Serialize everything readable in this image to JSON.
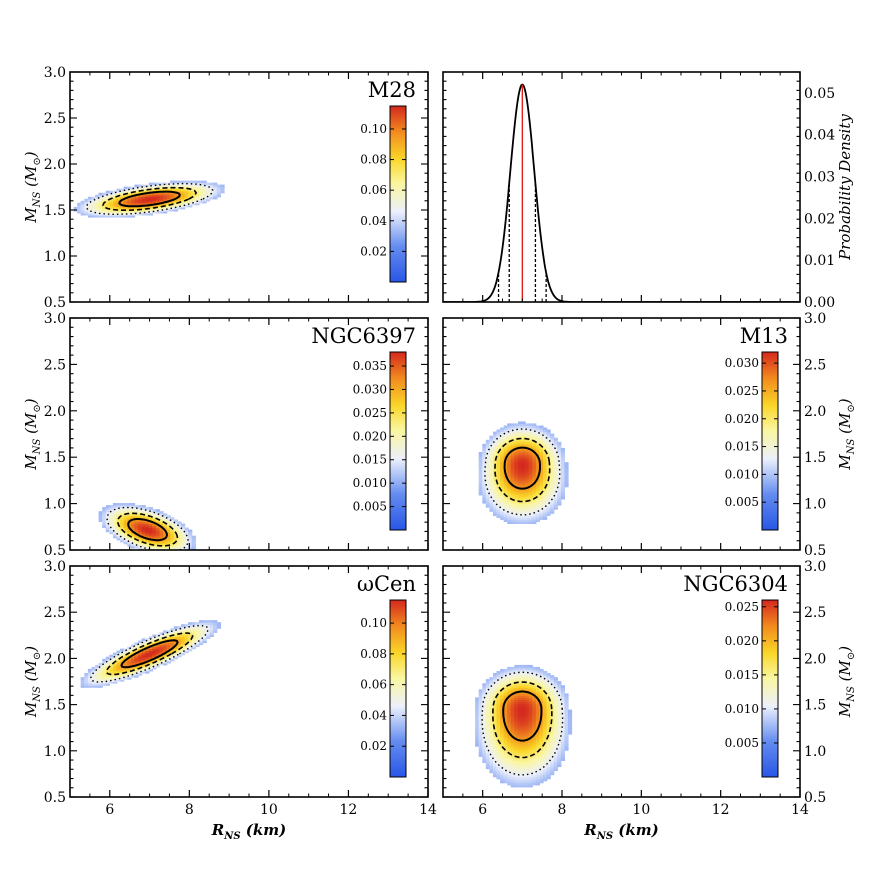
{
  "figure": {
    "x_axis_label": {
      "main": "R",
      "sub": "NS",
      "unit": " (km)"
    },
    "mass_axis_label": {
      "main": "M",
      "sub": "NS",
      "unit_open": " (M",
      "unit_sub": "⊙",
      "unit_close": ")"
    },
    "density_axis_label": "Probability Density"
  },
  "chart_data": [
    {
      "type": "heatmap",
      "panel": "M28",
      "title": "M28",
      "xlim": [
        5,
        14
      ],
      "ylim": [
        0.5,
        3.0
      ],
      "xticks": [
        6,
        8,
        10,
        12,
        14
      ],
      "yticks": [
        0.5,
        1.0,
        1.5,
        2.0,
        2.5,
        3.0
      ],
      "ytick_labels": [
        "0.5",
        "1.0",
        "1.5",
        "2.0",
        "2.5",
        "3.0"
      ],
      "peak": {
        "R": 7.0,
        "M": 1.62
      },
      "colorbar": {
        "min": 0,
        "max": 0.115,
        "ticks": [
          "0.02",
          "0.04",
          "0.06",
          "0.08",
          "0.10"
        ],
        "tick_values": [
          0.02,
          0.04,
          0.06,
          0.08,
          0.1
        ]
      }
    },
    {
      "type": "line",
      "panel": "radius-pdf",
      "title": "",
      "xlim": [
        5,
        14
      ],
      "ylim": [
        0.0,
        0.055
      ],
      "xticks": [
        6,
        8,
        10,
        12,
        14
      ],
      "yticks": [
        0.0,
        0.01,
        0.02,
        0.03,
        0.04,
        0.05
      ],
      "ytick_labels": [
        "0.00",
        "0.01",
        "0.02",
        "0.03",
        "0.04",
        "0.05"
      ],
      "ylabel": "Probability Density",
      "gaussian": {
        "mean": 7.0,
        "sigma": 0.3,
        "peak": 0.052
      },
      "median_line": 7.0,
      "dashed_lines": [
        6.4,
        6.67,
        7.33,
        7.6
      ]
    },
    {
      "type": "heatmap",
      "panel": "NGC6397",
      "title": "NGC6397",
      "xlim": [
        5,
        14
      ],
      "ylim": [
        0.5,
        3.0
      ],
      "xticks": [
        6,
        8,
        10,
        12,
        14
      ],
      "yticks": [
        0.5,
        1.0,
        1.5,
        2.0,
        2.5,
        3.0
      ],
      "ytick_labels": [
        "0.5",
        "1.0",
        "1.5",
        "2.0",
        "2.5",
        "3.0"
      ],
      "peak": {
        "R": 7.0,
        "M": 0.65
      },
      "colorbar": {
        "min": 0,
        "max": 0.038,
        "ticks": [
          "0.005",
          "0.010",
          "0.015",
          "0.020",
          "0.025",
          "0.030",
          "0.035"
        ],
        "tick_values": [
          0.005,
          0.01,
          0.015,
          0.02,
          0.025,
          0.03,
          0.035
        ]
      }
    },
    {
      "type": "heatmap",
      "panel": "M13",
      "title": "M13",
      "xlim": [
        5,
        14
      ],
      "ylim": [
        0.5,
        3.0
      ],
      "xticks": [
        6,
        8,
        10,
        12,
        14
      ],
      "yticks": [
        0.5,
        1.0,
        1.5,
        2.0,
        2.5,
        3.0
      ],
      "ytick_labels": [
        "0.5",
        "1.0",
        "1.5",
        "2.0",
        "2.5",
        "3.0"
      ],
      "peak": {
        "R": 7.0,
        "M": 1.45
      },
      "colorbar": {
        "min": 0,
        "max": 0.032,
        "ticks": [
          "0.005",
          "0.010",
          "0.015",
          "0.020",
          "0.025",
          "0.030"
        ],
        "tick_values": [
          0.005,
          0.01,
          0.015,
          0.02,
          0.025,
          0.03
        ]
      }
    },
    {
      "type": "heatmap",
      "panel": "omega-Cen",
      "title": "ωCen",
      "xlim": [
        5,
        14
      ],
      "ylim": [
        0.5,
        3.0
      ],
      "xticks": [
        6,
        8,
        10,
        12,
        14
      ],
      "yticks": [
        0.5,
        1.0,
        1.5,
        2.0,
        2.5,
        3.0
      ],
      "ytick_labels": [
        "0.5",
        "1.0",
        "1.5",
        "2.0",
        "2.5",
        "3.0"
      ],
      "peak": {
        "R": 7.0,
        "M": 2.05
      },
      "colorbar": {
        "min": 0,
        "max": 0.115,
        "ticks": [
          "0.02",
          "0.04",
          "0.06",
          "0.08",
          "0.10"
        ],
        "tick_values": [
          0.02,
          0.04,
          0.06,
          0.08,
          0.1
        ]
      }
    },
    {
      "type": "heatmap",
      "panel": "NGC6304",
      "title": "NGC6304",
      "xlim": [
        5,
        14
      ],
      "ylim": [
        0.5,
        3.0
      ],
      "xticks": [
        6,
        8,
        10,
        12,
        14
      ],
      "yticks": [
        0.5,
        1.0,
        1.5,
        2.0,
        2.5,
        3.0
      ],
      "ytick_labels": [
        "0.5",
        "1.0",
        "1.5",
        "2.0",
        "2.5",
        "3.0"
      ],
      "peak": {
        "R": 7.0,
        "M": 1.45
      },
      "colorbar": {
        "min": 0,
        "max": 0.026,
        "ticks": [
          "0.005",
          "0.010",
          "0.015",
          "0.020",
          "0.025"
        ],
        "tick_values": [
          0.005,
          0.01,
          0.015,
          0.02,
          0.025
        ]
      }
    }
  ]
}
